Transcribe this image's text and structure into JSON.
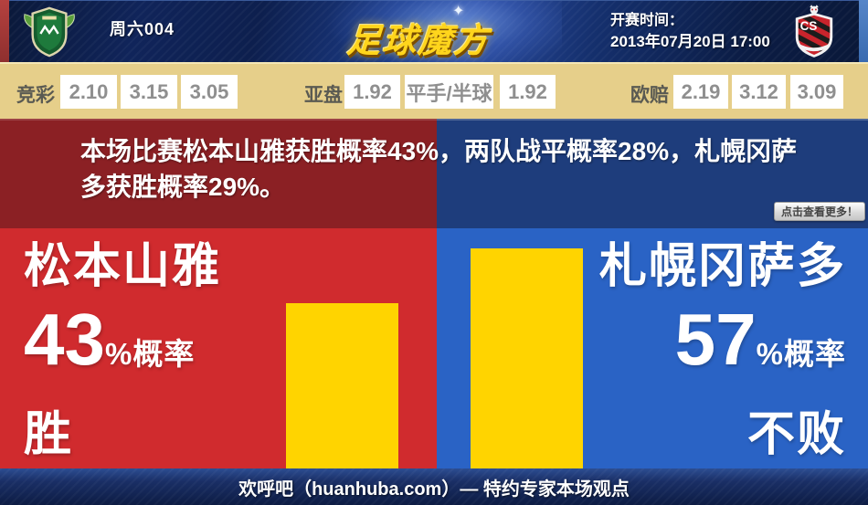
{
  "header": {
    "match_label": "周六004",
    "logo_text": "足球魔方",
    "kickoff_label": "开赛时间：",
    "kickoff_datetime": "2013年07月20日 17:00",
    "home_crest": "matsumoto-yamaga-crest",
    "away_crest": "consadole-sapporo-crest",
    "away_crest_initials": "CS"
  },
  "odds": {
    "jingcai": {
      "label": "竞彩",
      "values": [
        "2.10",
        "3.15",
        "3.05"
      ]
    },
    "yapan": {
      "label": "亚盘",
      "values": [
        "1.92",
        "平手/半球",
        "1.92"
      ]
    },
    "oupei": {
      "label": "欧赔",
      "values": [
        "2.19",
        "3.12",
        "3.09"
      ]
    }
  },
  "summary": {
    "text": "本场比赛松本山雅获胜概率43%，两队战平概率28%，札幌冈萨多获胜概率29%。",
    "more_button_label": "点击查看更多！"
  },
  "home_panel": {
    "team_name": "松本山雅",
    "probability": "43",
    "probability_suffix": "%概率",
    "outcome": "胜",
    "bar_value": 43
  },
  "away_panel": {
    "team_name": "札幌冈萨多",
    "probability": "57",
    "probability_suffix": "%概率",
    "outcome": "不败",
    "bar_value": 57
  },
  "footer": {
    "text": "欢呼吧（huanhuba.com）— 特约专家本场观点"
  },
  "chart_data": {
    "type": "bar",
    "categories": [
      "松本山雅 胜",
      "札幌冈萨多 不败"
    ],
    "values": [
      43,
      57
    ],
    "summary_probabilities": {
      "home_win": 43,
      "draw": 28,
      "away_win": 29
    },
    "ylim": [
      0,
      62
    ],
    "bar_color": "#ffd400"
  },
  "colors": {
    "home_red": "#d02b2e",
    "home_dark_red": "#8b2024",
    "away_blue": "#2a63c5",
    "away_dark_blue": "#1e3d7c",
    "bar_yellow": "#ffd400",
    "odds_beige": "#e6cf8a",
    "logo_gold": "#ffd51c"
  }
}
